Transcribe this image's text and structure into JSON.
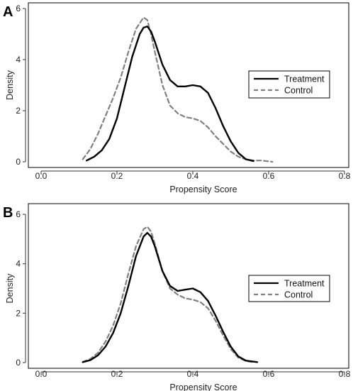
{
  "chart_data": [
    {
      "panel": "A",
      "type": "line",
      "xlabel": "Propensity Score",
      "ylabel": "Density",
      "xlim": [
        0,
        0.8
      ],
      "ylim": [
        0,
        6
      ],
      "xticks": [
        "0.0",
        "0.2",
        "0.4",
        "0.6",
        "0.8"
      ],
      "yticks": [
        "0",
        "2",
        "4",
        "6"
      ],
      "legend_position": "right",
      "series": [
        {
          "name": "Treatment",
          "style": "solid",
          "color": "#000000",
          "x": [
            0.12,
            0.14,
            0.16,
            0.18,
            0.2,
            0.22,
            0.24,
            0.26,
            0.27,
            0.28,
            0.29,
            0.3,
            0.32,
            0.34,
            0.36,
            0.38,
            0.4,
            0.42,
            0.44,
            0.46,
            0.48,
            0.5,
            0.52,
            0.54,
            0.56
          ],
          "y": [
            0.05,
            0.2,
            0.45,
            0.9,
            1.7,
            2.9,
            4.1,
            5.0,
            5.25,
            5.3,
            5.1,
            4.7,
            3.8,
            3.2,
            2.95,
            2.95,
            3.0,
            2.95,
            2.7,
            2.1,
            1.4,
            0.8,
            0.35,
            0.1,
            0.03
          ]
        },
        {
          "name": "Control",
          "style": "dashed",
          "color": "#808080",
          "x": [
            0.11,
            0.13,
            0.15,
            0.17,
            0.19,
            0.21,
            0.23,
            0.25,
            0.27,
            0.28,
            0.29,
            0.3,
            0.32,
            0.34,
            0.36,
            0.38,
            0.4,
            0.42,
            0.44,
            0.46,
            0.48,
            0.5,
            0.52,
            0.54,
            0.56,
            0.58,
            0.61
          ],
          "y": [
            0.1,
            0.5,
            1.1,
            1.8,
            2.5,
            3.3,
            4.3,
            5.2,
            5.65,
            5.55,
            5.0,
            4.3,
            3.0,
            2.2,
            1.9,
            1.75,
            1.7,
            1.6,
            1.35,
            1.0,
            0.7,
            0.4,
            0.2,
            0.1,
            0.05,
            0.05,
            0.0
          ]
        }
      ]
    },
    {
      "panel": "B",
      "type": "line",
      "xlabel": "Propensity Score",
      "ylabel": "Density",
      "xlim": [
        0,
        0.8
      ],
      "ylim": [
        0,
        6
      ],
      "xticks": [
        "0.0",
        "0.2",
        "0.4",
        "0.6",
        "0.8"
      ],
      "yticks": [
        "0",
        "2",
        "4",
        "6"
      ],
      "legend_position": "right",
      "series": [
        {
          "name": "Treatment",
          "style": "solid",
          "color": "#000000",
          "x": [
            0.11,
            0.13,
            0.15,
            0.17,
            0.19,
            0.21,
            0.23,
            0.25,
            0.27,
            0.28,
            0.29,
            0.3,
            0.32,
            0.34,
            0.36,
            0.38,
            0.4,
            0.42,
            0.44,
            0.46,
            0.48,
            0.5,
            0.52,
            0.54,
            0.57
          ],
          "y": [
            0.02,
            0.1,
            0.3,
            0.65,
            1.2,
            2.0,
            3.1,
            4.3,
            5.1,
            5.25,
            5.1,
            4.7,
            3.7,
            3.1,
            2.9,
            2.95,
            3.0,
            2.85,
            2.5,
            1.9,
            1.25,
            0.65,
            0.25,
            0.08,
            0.02
          ]
        },
        {
          "name": "Control",
          "style": "dashed",
          "color": "#808080",
          "x": [
            0.11,
            0.13,
            0.15,
            0.17,
            0.19,
            0.21,
            0.23,
            0.25,
            0.27,
            0.28,
            0.29,
            0.3,
            0.32,
            0.34,
            0.36,
            0.38,
            0.4,
            0.42,
            0.44,
            0.46,
            0.48,
            0.5,
            0.52,
            0.54,
            0.56
          ],
          "y": [
            0.03,
            0.15,
            0.4,
            0.85,
            1.5,
            2.4,
            3.6,
            4.7,
            5.4,
            5.5,
            5.3,
            4.8,
            3.7,
            3.0,
            2.75,
            2.6,
            2.55,
            2.45,
            2.2,
            1.7,
            1.1,
            0.55,
            0.2,
            0.06,
            0.02
          ]
        }
      ]
    }
  ]
}
